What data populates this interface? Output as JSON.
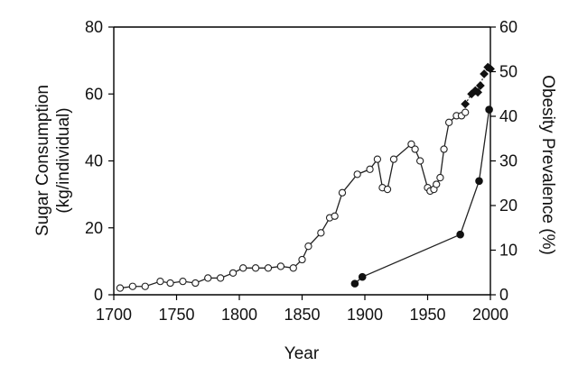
{
  "chart_data": {
    "type": "line",
    "xlabel": "Year",
    "ylabel_left_lines": [
      "Sugar Consumption",
      "(kg/individual)"
    ],
    "ylabel_right": "Obesity Prevalence  (%)",
    "xlim": [
      1700,
      2000
    ],
    "ylim_left": [
      0,
      80
    ],
    "ylim_right": [
      0,
      60
    ],
    "x_ticks": [
      "1700",
      "1750",
      "1800",
      "1850",
      "1900",
      "1950",
      "2000"
    ],
    "y_left_ticks": [
      "0",
      "20",
      "40",
      "60",
      "80"
    ],
    "y_right_ticks": [
      "0",
      "10",
      "20",
      "30",
      "40",
      "50",
      "60"
    ],
    "grid": false,
    "series": [
      {
        "axis": "left",
        "marker": "open-circle",
        "x": [
          1705,
          1715,
          1725,
          1737,
          1745,
          1755,
          1765,
          1775,
          1785,
          1795,
          1803,
          1813,
          1823,
          1833,
          1843,
          1850,
          1855,
          1865,
          1872,
          1876,
          1882,
          1894,
          1904,
          1910,
          1914,
          1918,
          1923,
          1937,
          1940,
          1944,
          1950,
          1952,
          1955,
          1957,
          1960,
          1963,
          1967,
          1973,
          1977,
          1980
        ],
        "y": [
          2,
          2.5,
          2.5,
          4,
          3.5,
          4,
          3.5,
          5,
          5,
          6.5,
          8,
          8,
          8,
          8.5,
          8,
          10.5,
          14.5,
          18.5,
          23,
          23.5,
          30.5,
          36,
          37.5,
          40.5,
          32,
          31.5,
          40.5,
          45,
          43.5,
          40,
          32,
          31,
          31.5,
          33,
          35,
          43.5,
          51.5,
          53.5,
          53.5,
          54.5
        ]
      },
      {
        "axis": "left",
        "marker": "filled-diamond",
        "x": [
          1980,
          1985,
          1988,
          1990,
          1992,
          1995,
          1998,
          2000
        ],
        "y": [
          57,
          60,
          61,
          60.5,
          62.5,
          66,
          68,
          67.5
        ]
      },
      {
        "axis": "right",
        "marker": "filled-circle",
        "x": [
          1892,
          1898,
          1976,
          1991,
          1999
        ],
        "y": [
          2.5,
          4,
          13.5,
          25.5,
          41.5
        ]
      }
    ]
  }
}
